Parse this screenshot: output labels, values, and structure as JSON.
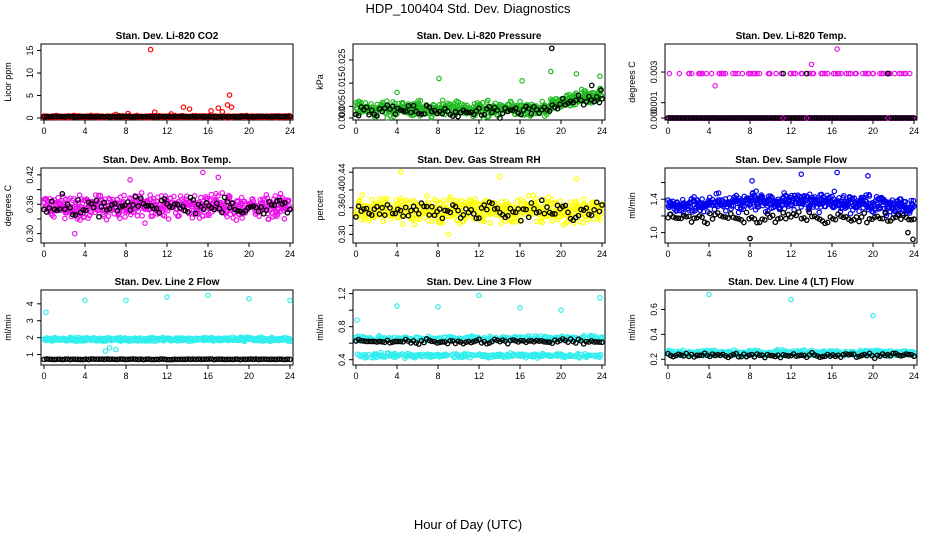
{
  "title": "HDP_100404  Std. Dev. Diagnostics",
  "xlabel": "Hour of Day (UTC)",
  "colors": {
    "axis": "#000000",
    "reference": "#000000"
  },
  "chart_data": [
    {
      "type": "scatter",
      "title": "Stan. Dev. Li-820 CO2",
      "ylabel": "Licor ppm",
      "color": "#ff0000",
      "xlim": [
        0,
        24
      ],
      "ylim": [
        0,
        16
      ],
      "xticks": [
        0,
        4,
        8,
        12,
        16,
        20,
        24
      ],
      "yticks": [
        0,
        5,
        10,
        15
      ],
      "primary": {
        "model": "flat",
        "base": 0.3,
        "spread": 0.3
      },
      "outliers": [
        [
          10.4,
          15.2
        ],
        [
          10.8,
          1.3
        ],
        [
          8.2,
          1.0
        ],
        [
          13.6,
          2.4
        ],
        [
          14.2,
          2.0
        ],
        [
          16.3,
          1.6
        ],
        [
          17.0,
          2.2
        ],
        [
          17.4,
          1.4
        ],
        [
          17.9,
          2.9
        ],
        [
          18.1,
          5.1
        ],
        [
          18.3,
          2.4
        ],
        [
          7.0,
          0.8
        ],
        [
          12.4,
          0.9
        ]
      ],
      "reference": {
        "model": "flat",
        "base": 0.3,
        "spread": 0.1
      }
    },
    {
      "type": "scatter",
      "title": "Stan. Dev. Li-820 Pressure",
      "ylabel": "kPa",
      "color": "#22bb22",
      "xlim": [
        0,
        24
      ],
      "ylim": [
        0,
        0.031
      ],
      "xticks": [
        0,
        4,
        8,
        12,
        16,
        20,
        24
      ],
      "yticks": [
        0.0,
        0.005,
        0.015,
        0.025
      ],
      "ytick_labels": [
        "0.000",
        "0.005",
        "0.015",
        "0.025"
      ],
      "primary": {
        "model": "pressure",
        "base": 0.004,
        "spread": 0.0045
      },
      "outliers": [
        [
          8.1,
          0.017
        ],
        [
          16.2,
          0.016
        ],
        [
          19.0,
          0.02
        ],
        [
          21.5,
          0.019
        ],
        [
          23.8,
          0.018
        ],
        [
          4.0,
          0.011
        ]
      ],
      "reference": {
        "model": "pressure",
        "base": 0.003,
        "spread": 0.004,
        "extra": [
          [
            19.1,
            0.03
          ],
          [
            23.0,
            0.014
          ],
          [
            23.9,
            0.012
          ]
        ]
      }
    },
    {
      "type": "scatter",
      "title": "Stan. Dev. Li-820 Temp.",
      "ylabel": "degrees C",
      "color": "#ee11ee",
      "xlim": [
        0,
        24
      ],
      "ylim": [
        0,
        0.0047
      ],
      "xticks": [
        0,
        4,
        8,
        12,
        16,
        20,
        24
      ],
      "yticks": [
        0.0,
        0.001,
        0.003
      ],
      "ytick_labels": [
        "0.000",
        "0.001",
        "0.003"
      ],
      "primary": {
        "model": "levels",
        "levels": [
          0.0,
          0.0029
        ],
        "fraction_high": 0.14
      },
      "outliers": [
        [
          4.6,
          0.0021
        ],
        [
          14.0,
          0.0035
        ],
        [
          16.5,
          0.0045
        ]
      ],
      "reference": {
        "model": "levels",
        "levels": [
          0.0,
          0.0029
        ],
        "fraction_high": 0.06
      }
    },
    {
      "type": "scatter",
      "title": "Stan. Dev. Amb. Box Temp.",
      "ylabel": "degrees C",
      "color": "#ee11ee",
      "xlim": [
        0,
        24
      ],
      "ylim": [
        0.285,
        0.43
      ],
      "xticks": [
        0,
        4,
        8,
        12,
        16,
        20,
        24
      ],
      "yticks": [
        0.3,
        0.33,
        0.36,
        0.39,
        0.42
      ],
      "ytick_labels": [
        "0.30",
        "",
        "0.36",
        "",
        "0.42"
      ],
      "primary": {
        "model": "flat",
        "base": 0.355,
        "spread": 0.035
      },
      "outliers": [
        [
          15.5,
          0.425
        ],
        [
          17.0,
          0.415
        ],
        [
          8.4,
          0.41
        ],
        [
          3.0,
          0.3
        ]
      ],
      "reference": {
        "model": "flat",
        "base": 0.355,
        "spread": 0.03
      }
    },
    {
      "type": "scatter",
      "title": "Stan. Dev. Gas Stream RH",
      "ylabel": "percent",
      "color": "#ffff00",
      "xlim": [
        0,
        24
      ],
      "ylim": [
        0.285,
        0.445
      ],
      "xticks": [
        0,
        4,
        8,
        12,
        16,
        20,
        24
      ],
      "yticks": [
        0.3,
        0.32,
        0.36,
        0.4,
        0.44
      ],
      "ytick_labels": [
        "0.30",
        "",
        "0.36",
        "0.40",
        "0.44"
      ],
      "primary": {
        "model": "flat",
        "base": 0.355,
        "spread": 0.04
      },
      "outliers": [
        [
          4.4,
          0.44
        ],
        [
          14.0,
          0.43
        ],
        [
          21.5,
          0.425
        ],
        [
          9.0,
          0.3
        ]
      ],
      "reference": {
        "model": "flat",
        "base": 0.352,
        "spread": 0.03
      }
    },
    {
      "type": "scatter",
      "title": "Stan. Dev. Sample Flow",
      "ylabel": "ml/min",
      "color": "#0000ee",
      "xlim": [
        0,
        24
      ],
      "ylim": [
        0.9,
        1.75
      ],
      "xticks": [
        0,
        4,
        8,
        12,
        16,
        20,
        24
      ],
      "yticks": [
        1.0,
        1.2,
        1.4,
        1.6
      ],
      "ytick_labels": [
        "1.0",
        "",
        "1.4",
        ""
      ],
      "primary": {
        "model": "hump",
        "base": 1.3,
        "spread": 0.15
      },
      "outliers": [
        [
          16.5,
          1.72
        ],
        [
          13.0,
          1.7
        ],
        [
          8.2,
          1.62
        ],
        [
          19.5,
          1.68
        ]
      ],
      "reference": {
        "model": "flat",
        "base": 1.18,
        "spread": 0.09,
        "extra": [
          [
            23.9,
            0.92
          ],
          [
            23.4,
            1.0
          ],
          [
            8.0,
            0.93
          ]
        ]
      }
    },
    {
      "type": "scatter",
      "title": "Stan. Dev. Line 2 Flow",
      "ylabel": "ml/min",
      "color": "#33eeee",
      "xlim": [
        0,
        24
      ],
      "ylim": [
        0.5,
        4.7
      ],
      "xticks": [
        0,
        4,
        8,
        12,
        16,
        20,
        24
      ],
      "yticks": [
        1,
        2,
        3,
        4
      ],
      "primary": {
        "model": "flat",
        "base": 1.9,
        "spread": 0.15
      },
      "outliers": [
        [
          0.2,
          3.5
        ],
        [
          4.0,
          4.2
        ],
        [
          8.0,
          4.2
        ],
        [
          12.0,
          4.4
        ],
        [
          16.0,
          4.5
        ],
        [
          20.0,
          4.3
        ],
        [
          24.0,
          4.2
        ],
        [
          6.0,
          1.2
        ],
        [
          6.4,
          1.4
        ],
        [
          7.0,
          1.3
        ]
      ],
      "reference": {
        "model": "flat",
        "base": 0.72,
        "spread": 0.03
      }
    },
    {
      "type": "scatter",
      "title": "Stan. Dev. Line 3 Flow",
      "ylabel": "ml/min",
      "color": "#33eeee",
      "xlim": [
        0,
        24
      ],
      "ylim": [
        0.36,
        1.22
      ],
      "xticks": [
        0,
        4,
        8,
        12,
        16,
        20,
        24
      ],
      "yticks": [
        0.4,
        0.6,
        0.8,
        1.0,
        1.2
      ],
      "ytick_labels": [
        "0.4",
        "",
        "0.8",
        "",
        "1.2"
      ],
      "primary": {
        "model": "dual",
        "levels": [
          0.45,
          0.66
        ],
        "spread": 0.04
      },
      "outliers": [
        [
          4.0,
          1.05
        ],
        [
          8.0,
          1.04
        ],
        [
          12.0,
          1.18
        ],
        [
          16.0,
          1.03
        ],
        [
          20.0,
          1.0
        ],
        [
          23.8,
          1.15
        ],
        [
          0.1,
          0.88
        ]
      ],
      "reference": {
        "model": "flat",
        "base": 0.62,
        "spread": 0.04
      }
    },
    {
      "type": "scatter",
      "title": "Stan. Dev. Line 4 (LT) Flow",
      "ylabel": "ml/min",
      "color": "#33eeee",
      "xlim": [
        0,
        24
      ],
      "ylim": [
        0.17,
        0.74
      ],
      "xticks": [
        0,
        4,
        8,
        12,
        16,
        20,
        24
      ],
      "yticks": [
        0.2,
        0.4,
        0.6
      ],
      "ytick_labels": [
        "0.2",
        "0.4",
        "0.6"
      ],
      "primary": {
        "model": "flat",
        "base": 0.25,
        "spread": 0.03
      },
      "outliers": [
        [
          4.0,
          0.72
        ],
        [
          12.0,
          0.68
        ],
        [
          20.0,
          0.55
        ]
      ],
      "reference": {
        "model": "flat",
        "base": 0.23,
        "spread": 0.025
      }
    }
  ]
}
